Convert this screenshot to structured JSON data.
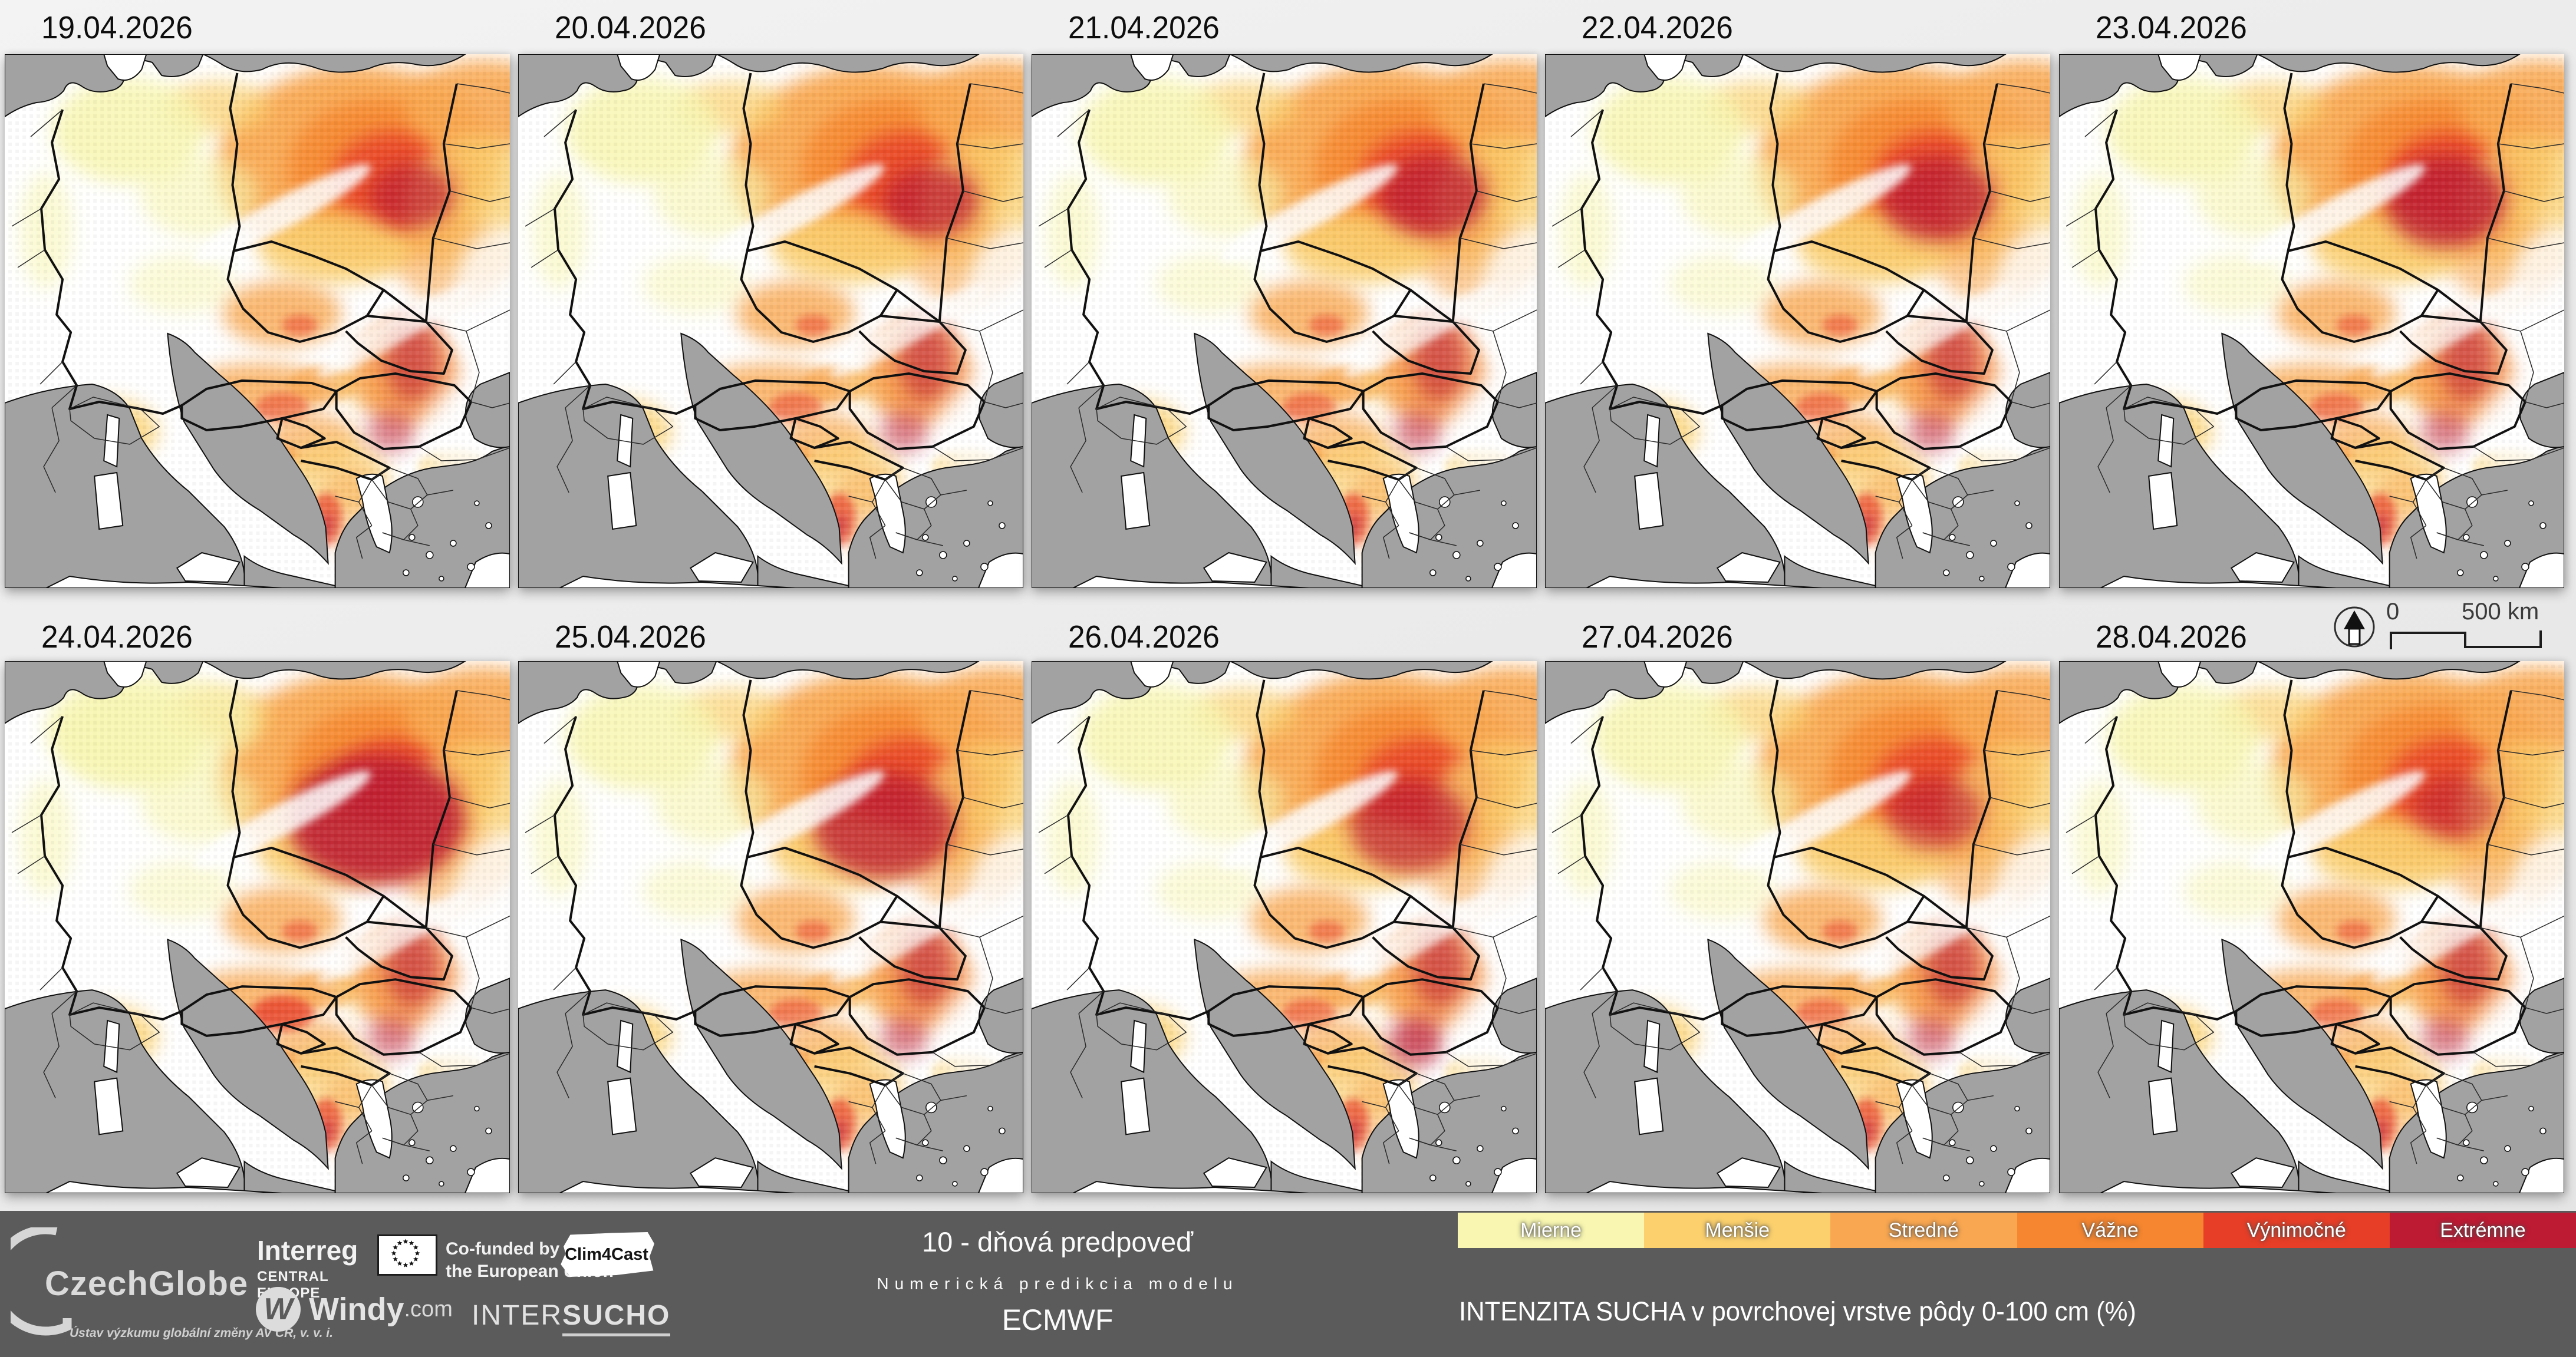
{
  "panels": [
    {
      "date": "19.04.2026",
      "extra_blobs": [
        [
          690,
          240,
          70,
          55,
          5,
          0.7
        ]
      ]
    },
    {
      "date": "20.04.2026",
      "extra_blobs": [
        [
          700,
          250,
          80,
          60,
          5,
          0.75
        ]
      ]
    },
    {
      "date": "21.04.2026",
      "extra_blobs": [
        [
          680,
          240,
          90,
          70,
          5,
          0.78
        ]
      ]
    },
    {
      "date": "22.04.2026",
      "extra_blobs": [
        [
          665,
          245,
          95,
          72,
          5,
          0.8
        ]
      ]
    },
    {
      "date": "23.04.2026",
      "extra_blobs": [
        [
          655,
          250,
          100,
          78,
          5,
          0.84
        ]
      ]
    },
    {
      "date": "24.04.2026",
      "extra_blobs": [
        [
          630,
          270,
          150,
          110,
          5,
          0.9
        ],
        [
          250,
          110,
          180,
          90,
          0,
          0.65
        ],
        [
          470,
          600,
          55,
          30,
          4,
          0.6
        ]
      ]
    },
    {
      "date": "25.04.2026",
      "extra_blobs": [
        [
          620,
          280,
          120,
          90,
          5,
          0.8
        ],
        [
          90,
          715,
          50,
          40,
          5,
          0.5
        ]
      ]
    },
    {
      "date": "26.04.2026",
      "extra_blobs": [
        [
          640,
          280,
          100,
          80,
          5,
          0.72
        ],
        [
          648,
          655,
          45,
          40,
          5,
          0.5
        ]
      ]
    },
    {
      "date": "27.04.2026",
      "extra_blobs": [
        [
          660,
          260,
          80,
          62,
          5,
          0.62
        ],
        [
          90,
          725,
          55,
          45,
          5,
          0.55
        ]
      ]
    },
    {
      "date": "28.04.2026",
      "extra_blobs": [
        [
          670,
          250,
          70,
          55,
          5,
          0.55
        ],
        [
          238,
          772,
          30,
          22,
          5,
          0.6
        ]
      ]
    }
  ],
  "map": {
    "sea_color": "#a2a2a2",
    "land_color": "#ffffff",
    "border_color": "#111111",
    "palette": [
      "#f8f6b0",
      "#fbd06d",
      "#f9a750",
      "#f6862f",
      "#e73e27",
      "#bd1a33"
    ],
    "base_blobs": [
      [
        600,
        190,
        240,
        170,
        2,
        0.95
      ],
      [
        640,
        195,
        160,
        120,
        3,
        0.85
      ],
      [
        665,
        215,
        110,
        85,
        4,
        0.8
      ],
      [
        810,
        90,
        130,
        80,
        2,
        0.9
      ],
      [
        800,
        260,
        120,
        120,
        1,
        0.75
      ],
      [
        760,
        350,
        100,
        70,
        2,
        0.6
      ],
      [
        360,
        90,
        90,
        45,
        1,
        0.7
      ],
      [
        560,
        330,
        130,
        60,
        1,
        0.8
      ],
      [
        210,
        130,
        130,
        90,
        0,
        0.85
      ],
      [
        330,
        240,
        100,
        70,
        0,
        0.6
      ],
      [
        70,
        300,
        45,
        100,
        0,
        0.55
      ],
      [
        300,
        390,
        90,
        50,
        0,
        0.5
      ],
      [
        470,
        440,
        100,
        55,
        2,
        0.8
      ],
      [
        500,
        460,
        30,
        18,
        4,
        0.5
      ],
      [
        430,
        570,
        120,
        45,
        2,
        0.8
      ],
      [
        540,
        560,
        60,
        30,
        2,
        0.7
      ],
      [
        470,
        600,
        45,
        25,
        4,
        0.55
      ],
      [
        170,
        640,
        90,
        55,
        1,
        0.8
      ],
      [
        150,
        660,
        40,
        25,
        3,
        0.5
      ],
      [
        182,
        655,
        16,
        12,
        4,
        0.5
      ],
      [
        80,
        710,
        80,
        70,
        3,
        0.8
      ],
      [
        65,
        745,
        30,
        25,
        5,
        0.55
      ],
      [
        220,
        770,
        70,
        40,
        3,
        0.75
      ],
      [
        235,
        775,
        20,
        15,
        5,
        0.7
      ],
      [
        290,
        810,
        60,
        30,
        1,
        0.6
      ],
      [
        520,
        660,
        80,
        50,
        2,
        0.7
      ],
      [
        440,
        680,
        60,
        18,
        3,
        0.65
      ],
      [
        560,
        720,
        90,
        70,
        1,
        0.65
      ],
      [
        590,
        740,
        50,
        40,
        2,
        0.5
      ],
      [
        545,
        790,
        28,
        45,
        4,
        0.7
      ],
      [
        548,
        800,
        14,
        18,
        5,
        0.5
      ],
      [
        640,
        560,
        80,
        40,
        1,
        0.6
      ],
      [
        680,
        540,
        90,
        90,
        3,
        0.7
      ],
      [
        690,
        520,
        45,
        70,
        5,
        0.6
      ],
      [
        655,
        640,
        40,
        35,
        5,
        0.55
      ],
      [
        760,
        700,
        60,
        30,
        1,
        0.5
      ],
      [
        700,
        780,
        50,
        25,
        2,
        0.5
      ],
      [
        600,
        820,
        40,
        40,
        2,
        0.6
      ],
      [
        470,
        270,
        170,
        26,
        -1,
        0.85,
        -28
      ],
      [
        660,
        470,
        150,
        22,
        -1,
        0.7,
        -30
      ],
      [
        856,
        420,
        100,
        130,
        -1,
        0.8
      ],
      [
        820,
        640,
        110,
        90,
        -1,
        0.7
      ]
    ]
  },
  "scalebar": {
    "zero_label": "0",
    "distance_label": "500 km",
    "north_icon": "north-arrow"
  },
  "legend": {
    "items": [
      {
        "label": "Mierne",
        "color": "#f8f6b0"
      },
      {
        "label": "Menšie",
        "color": "#fbd06d"
      },
      {
        "label": "Stredné",
        "color": "#f9a750"
      },
      {
        "label": "Vážne",
        "color": "#f6862f"
      },
      {
        "label": "Výnimočné",
        "color": "#e73e27"
      },
      {
        "label": "Extrémne",
        "color": "#bd1a33"
      }
    ]
  },
  "footer": {
    "czechglobe": {
      "name": "CzechGlobe",
      "subtitle": "Ústav výzkumu globální změny AV ČR, v. v. i."
    },
    "interreg": {
      "name": "Interreg",
      "program": "CENTRAL EUROPE"
    },
    "eu_funding": {
      "line1": "Co-funded by",
      "line2": "the European Union"
    },
    "clim4cast": {
      "name": "Clim4Cast"
    },
    "windy": {
      "glyph": "W",
      "name": "Windy",
      "tld": ".com"
    },
    "intersucho": {
      "part1": "INTER",
      "part2": "SUCHO"
    },
    "forecast": {
      "line1": "10 - dňová predpoveď",
      "line2": "Numerická predikcia modelu",
      "line3": "ECMWF"
    },
    "map_title": "INTENZITA SUCHA v povrchovej vrstve pôdy 0-100 cm (%)"
  }
}
